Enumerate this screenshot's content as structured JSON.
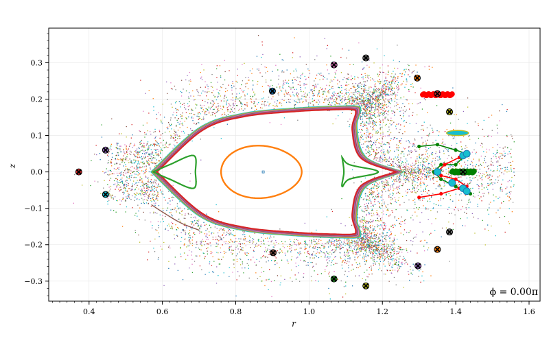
{
  "chart_data": {
    "type": "scatter",
    "title": "",
    "xlabel": "r",
    "ylabel": "z",
    "xlim": [
      0.29,
      1.63
    ],
    "ylim": [
      -0.355,
      0.395
    ],
    "xticks": [
      "0.4",
      "0.6",
      "0.8",
      "1.0",
      "1.2",
      "1.4",
      "1.6"
    ],
    "yticks": [
      "−0.3",
      "−0.2",
      "−0.1",
      "0.0",
      "0.1",
      "0.2",
      "0.3"
    ],
    "grid": true,
    "annotation": "ϕ = 0.00π",
    "magnetic_axis": {
      "x": 0.875,
      "y": 0.0
    },
    "separatrix": {
      "colors": [
        "#17becf",
        "#bcbd22",
        "#7f7f7f",
        "#e377c2",
        "#8c564b",
        "#9467bd",
        "#d62728"
      ],
      "outer_x_point": [
        1.255,
        0.0
      ],
      "inner_x_point": [
        0.565,
        0.0
      ],
      "top_points": [
        [
          0.57,
          0.0
        ],
        [
          0.7,
          0.12
        ],
        [
          0.82,
          0.16
        ],
        [
          0.97,
          0.175
        ],
        [
          1.08,
          0.18
        ],
        [
          1.13,
          0.18
        ],
        [
          1.14,
          0.17
        ],
        [
          1.13,
          0.12
        ],
        [
          1.155,
          0.04
        ],
        [
          1.255,
          0.0
        ]
      ],
      "bottom_points": [
        [
          0.57,
          0.0
        ],
        [
          0.7,
          -0.12
        ],
        [
          0.82,
          -0.16
        ],
        [
          0.97,
          -0.175
        ],
        [
          1.08,
          -0.18
        ],
        [
          1.13,
          -0.18
        ],
        [
          1.14,
          -0.17
        ],
        [
          1.13,
          -0.12
        ],
        [
          1.155,
          -0.04
        ],
        [
          1.255,
          0.0
        ]
      ]
    },
    "inner_ellipse": {
      "color": "#ff7f0e",
      "cx": 0.87,
      "cy": 0.0,
      "rx": 0.107,
      "ry": 0.072,
      "xshift": 0.03
    },
    "green_islands": [
      {
        "color": "#2ca02c",
        "points": [
          [
            0.575,
            0.0
          ],
          [
            0.62,
            0.02
          ],
          [
            0.685,
            0.045
          ],
          [
            0.69,
            0.0
          ],
          [
            0.685,
            -0.045
          ],
          [
            0.62,
            -0.02
          ]
        ]
      },
      {
        "color": "#2ca02c",
        "points": [
          [
            1.09,
            0.04
          ],
          [
            1.11,
            0.02
          ],
          [
            1.18,
            0.005
          ],
          [
            1.18,
            -0.005
          ],
          [
            1.11,
            -0.02
          ],
          [
            1.09,
            -0.04
          ],
          [
            1.095,
            0.0
          ]
        ]
      }
    ],
    "divertor_legs": [
      {
        "color": "#008000",
        "points": [
          [
            1.3,
            0.07
          ],
          [
            1.35,
            0.075
          ],
          [
            1.4,
            0.06
          ],
          [
            1.43,
            0.05
          ],
          [
            1.4,
            0.02
          ],
          [
            1.36,
            0.02
          ],
          [
            1.34,
            0.0
          ],
          [
            1.36,
            -0.02
          ],
          [
            1.4,
            -0.04
          ],
          [
            1.44,
            -0.06
          ]
        ]
      },
      {
        "color": "#ff0000",
        "points": [
          [
            1.3,
            -0.07
          ],
          [
            1.36,
            -0.06
          ],
          [
            1.41,
            -0.045
          ],
          [
            1.43,
            -0.04
          ],
          [
            1.4,
            -0.02
          ],
          [
            1.36,
            -0.01
          ],
          [
            1.35,
            0.0
          ],
          [
            1.37,
            0.02
          ],
          [
            1.41,
            0.04
          ],
          [
            1.43,
            0.05
          ]
        ]
      }
    ],
    "strike_dense": [
      {
        "color": "#ff0000",
        "x": [
          1.31,
          1.39
        ],
        "y": 0.212
      },
      {
        "color": "#008000",
        "x": [
          1.39,
          1.45
        ],
        "y": 0.0
      }
    ],
    "small_island": {
      "color": "#bcbd22",
      "cx": 1.405,
      "cy": 0.107,
      "rx": 0.03,
      "ry": 0.007
    },
    "lower_tail": {
      "color": "#8c564b",
      "points": [
        [
          0.57,
          -0.09
        ],
        [
          0.6,
          -0.11
        ],
        [
          0.65,
          -0.14
        ],
        [
          0.7,
          -0.16
        ]
      ]
    },
    "x_markers": [
      {
        "x": 0.372,
        "y": 0.0,
        "color": "#d62728"
      },
      {
        "x": 0.445,
        "y": 0.06,
        "color": "#9467bd"
      },
      {
        "x": 0.445,
        "y": -0.062,
        "color": "#17becf"
      },
      {
        "x": 0.9,
        "y": 0.222,
        "color": "#1f77b4"
      },
      {
        "x": 0.902,
        "y": -0.222,
        "color": "#8c564b"
      },
      {
        "x": 1.068,
        "y": 0.294,
        "color": "#e377c2"
      },
      {
        "x": 1.068,
        "y": -0.294,
        "color": "#2ca02c"
      },
      {
        "x": 1.155,
        "y": 0.313,
        "color": "#7f7f7f"
      },
      {
        "x": 1.155,
        "y": -0.313,
        "color": "#bcbd22"
      },
      {
        "x": 1.295,
        "y": 0.258,
        "color": "#ff7f0e"
      },
      {
        "x": 1.383,
        "y": 0.165,
        "color": "#bcbd22"
      },
      {
        "x": 1.383,
        "y": -0.165,
        "color": "#7f7f7f"
      },
      {
        "x": 1.35,
        "y": -0.213,
        "color": "#ff7f0e"
      },
      {
        "x": 1.297,
        "y": -0.258,
        "color": "#9467bd"
      },
      {
        "x": 1.35,
        "y": 0.215,
        "color": "#d62728"
      },
      {
        "x": 1.42,
        "y": 0.0,
        "color": "#2ca02c"
      }
    ],
    "cyan_markers": [
      {
        "x": 1.42,
        "y": 0.045
      },
      {
        "x": 1.43,
        "y": 0.05
      },
      {
        "x": 1.35,
        "y": 0.0
      },
      {
        "x": 1.42,
        "y": -0.045
      },
      {
        "x": 1.43,
        "y": -0.053
      },
      {
        "x": 1.39,
        "y": -0.03
      }
    ],
    "scatter_colors": [
      "#1f77b4",
      "#ff7f0e",
      "#2ca02c",
      "#d62728",
      "#9467bd",
      "#8c564b",
      "#e377c2",
      "#7f7f7f",
      "#bcbd22",
      "#17becf"
    ]
  }
}
